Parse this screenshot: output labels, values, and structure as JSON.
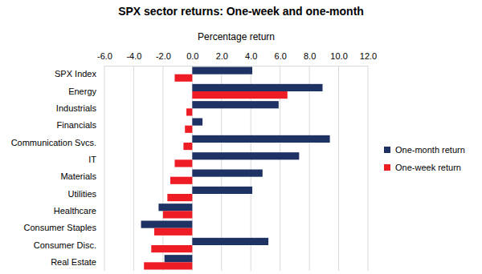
{
  "chart_data": {
    "type": "bar",
    "orientation": "horizontal",
    "title": "SPX sector returns: One-week and one-month",
    "xlabel": "Percentage return",
    "categories": [
      "SPX Index",
      "Energy",
      "Industrials",
      "Financials",
      "Communication Svcs.",
      "IT",
      "Materials",
      "Utilities",
      "Healthcare",
      "Consumer Staples",
      "Consumer Disc.",
      "Real Estate"
    ],
    "series": [
      {
        "name": "One-month return",
        "color": "#1f3264",
        "values": [
          4.1,
          8.9,
          5.9,
          0.7,
          9.4,
          7.3,
          4.8,
          4.1,
          -2.3,
          -3.5,
          5.2,
          -1.9
        ]
      },
      {
        "name": "One-week return",
        "color": "#ee1c25",
        "values": [
          -1.2,
          6.5,
          -0.4,
          -0.5,
          -0.6,
          -1.2,
          -1.5,
          -1.7,
          -2.0,
          -2.6,
          -2.8,
          -3.3
        ]
      }
    ],
    "xlim": [
      -6,
      12
    ],
    "xticks": [
      {
        "value": -6,
        "label": "-6.0"
      },
      {
        "value": -4,
        "label": "-4.0"
      },
      {
        "value": -2,
        "label": "-2.0"
      },
      {
        "value": 0,
        "label": "0.0"
      },
      {
        "value": 2,
        "label": "2.0"
      },
      {
        "value": 4,
        "label": "4.0"
      },
      {
        "value": 6,
        "label": "6.0"
      },
      {
        "value": 8,
        "label": "8.0"
      },
      {
        "value": 10,
        "label": "10.0"
      },
      {
        "value": 12,
        "label": "12.0"
      }
    ],
    "grid": true,
    "legend": "right"
  }
}
